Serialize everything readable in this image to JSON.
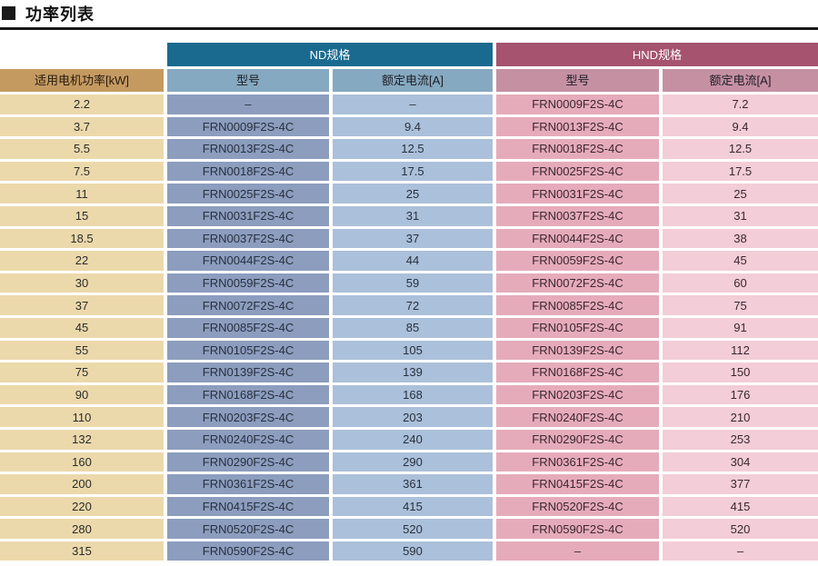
{
  "title": "功率列表",
  "table": {
    "group_headers": {
      "nd": "ND规格",
      "hnd": "HND规格"
    },
    "columns": {
      "kw": "适用电机功率[kW]",
      "nd_model": "型号",
      "nd_current": "额定电流[A]",
      "hnd_model": "型号",
      "hnd_current": "额定电流[A]"
    },
    "rows": [
      {
        "kw": "2.2",
        "nd_model": "–",
        "nd_current": "–",
        "hnd_model": "FRN0009F2S-4C",
        "hnd_current": "7.2"
      },
      {
        "kw": "3.7",
        "nd_model": "FRN0009F2S-4C",
        "nd_current": "9.4",
        "hnd_model": "FRN0013F2S-4C",
        "hnd_current": "9.4"
      },
      {
        "kw": "5.5",
        "nd_model": "FRN0013F2S-4C",
        "nd_current": "12.5",
        "hnd_model": "FRN0018F2S-4C",
        "hnd_current": "12.5"
      },
      {
        "kw": "7.5",
        "nd_model": "FRN0018F2S-4C",
        "nd_current": "17.5",
        "hnd_model": "FRN0025F2S-4C",
        "hnd_current": "17.5"
      },
      {
        "kw": "11",
        "nd_model": "FRN0025F2S-4C",
        "nd_current": "25",
        "hnd_model": "FRN0031F2S-4C",
        "hnd_current": "25"
      },
      {
        "kw": "15",
        "nd_model": "FRN0031F2S-4C",
        "nd_current": "31",
        "hnd_model": "FRN0037F2S-4C",
        "hnd_current": "31"
      },
      {
        "kw": "18.5",
        "nd_model": "FRN0037F2S-4C",
        "nd_current": "37",
        "hnd_model": "FRN0044F2S-4C",
        "hnd_current": "38"
      },
      {
        "kw": "22",
        "nd_model": "FRN0044F2S-4C",
        "nd_current": "44",
        "hnd_model": "FRN0059F2S-4C",
        "hnd_current": "45"
      },
      {
        "kw": "30",
        "nd_model": "FRN0059F2S-4C",
        "nd_current": "59",
        "hnd_model": "FRN0072F2S-4C",
        "hnd_current": "60"
      },
      {
        "kw": "37",
        "nd_model": "FRN0072F2S-4C",
        "nd_current": "72",
        "hnd_model": "FRN0085F2S-4C",
        "hnd_current": "75"
      },
      {
        "kw": "45",
        "nd_model": "FRN0085F2S-4C",
        "nd_current": "85",
        "hnd_model": "FRN0105F2S-4C",
        "hnd_current": "91"
      },
      {
        "kw": "55",
        "nd_model": "FRN0105F2S-4C",
        "nd_current": "105",
        "hnd_model": "FRN0139F2S-4C",
        "hnd_current": "112"
      },
      {
        "kw": "75",
        "nd_model": "FRN0139F2S-4C",
        "nd_current": "139",
        "hnd_model": "FRN0168F2S-4C",
        "hnd_current": "150"
      },
      {
        "kw": "90",
        "nd_model": "FRN0168F2S-4C",
        "nd_current": "168",
        "hnd_model": "FRN0203F2S-4C",
        "hnd_current": "176"
      },
      {
        "kw": "110",
        "nd_model": "FRN0203F2S-4C",
        "nd_current": "203",
        "hnd_model": "FRN0240F2S-4C",
        "hnd_current": "210"
      },
      {
        "kw": "132",
        "nd_model": "FRN0240F2S-4C",
        "nd_current": "240",
        "hnd_model": "FRN0290F2S-4C",
        "hnd_current": "253"
      },
      {
        "kw": "160",
        "nd_model": "FRN0290F2S-4C",
        "nd_current": "290",
        "hnd_model": "FRN0361F2S-4C",
        "hnd_current": "304"
      },
      {
        "kw": "200",
        "nd_model": "FRN0361F2S-4C",
        "nd_current": "361",
        "hnd_model": "FRN0415F2S-4C",
        "hnd_current": "377"
      },
      {
        "kw": "220",
        "nd_model": "FRN0415F2S-4C",
        "nd_current": "415",
        "hnd_model": "FRN0520F2S-4C",
        "hnd_current": "415"
      },
      {
        "kw": "280",
        "nd_model": "FRN0520F2S-4C",
        "nd_current": "520",
        "hnd_model": "FRN0590F2S-4C",
        "hnd_current": "520"
      },
      {
        "kw": "315",
        "nd_model": "FRN0590F2S-4C",
        "nd_current": "590",
        "hnd_model": "–",
        "hnd_current": "–"
      }
    ]
  },
  "colors": {
    "kw_header": "#c59a61",
    "kw_cell": "#ecd9ab",
    "nd_header": "#1a6a90",
    "nd_subheader": "#85a9c0",
    "nd_model_cell": "#8c9dbe",
    "nd_current_cell": "#abc0da",
    "hnd_header": "#a5536f",
    "hnd_subheader": "#c690a3",
    "hnd_model_cell": "#e6abba",
    "hnd_current_cell": "#f3cdd7"
  }
}
